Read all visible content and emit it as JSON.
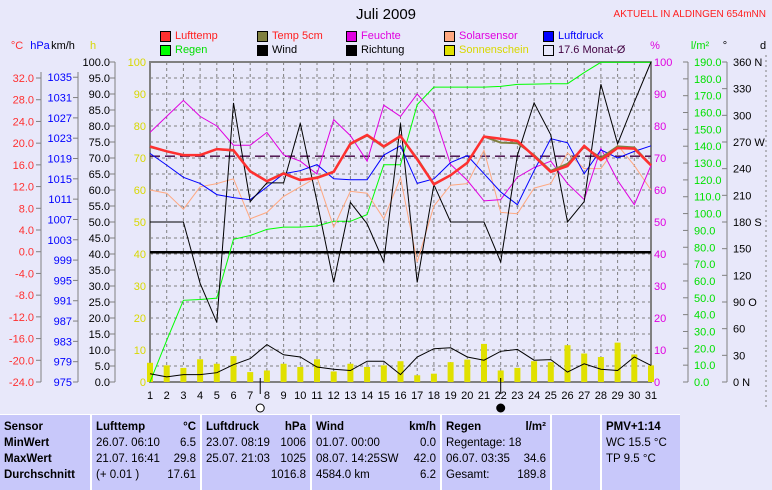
{
  "header": {
    "title": "Juli 2009",
    "status": "AKTUELL IN ALDINGEN 654mNN"
  },
  "legend": [
    {
      "label": "Lufttemp",
      "color": "#ff3030",
      "text_color": "#ff2020"
    },
    {
      "label": "Temp 5cm",
      "color": "#808040",
      "text_color": "#ff2020"
    },
    {
      "label": "Feuchte",
      "color": "#e000e0",
      "text_color": "#e000e0"
    },
    {
      "label": "Solarsensor",
      "color": "#ffa880",
      "text_color": "#e000e0"
    },
    {
      "label": "Luftdruck",
      "color": "#0000ff",
      "text_color": "#0000ff"
    },
    {
      "label": "Regen",
      "color": "#00ff00",
      "text_color": "#00e000"
    },
    {
      "label": "Wind",
      "color": "#000000",
      "text_color": "#000000"
    },
    {
      "label": "Richtung",
      "color": "#000000",
      "text_color": "#000000"
    },
    {
      "label": "Sonnenschein",
      "color": "#e0e000",
      "text_color": "#d8d800"
    },
    {
      "label": "17.6 Monat-Ø",
      "color": "#e8e8fa",
      "text_color": "#400040"
    }
  ],
  "chart_data": {
    "type": "line",
    "title": "Juli 2009",
    "x": [
      1,
      2,
      3,
      4,
      5,
      6,
      7,
      8,
      9,
      10,
      11,
      12,
      13,
      14,
      15,
      16,
      17,
      18,
      19,
      20,
      21,
      22,
      23,
      24,
      25,
      26,
      27,
      28,
      29,
      30,
      31
    ],
    "axes": {
      "celsius": {
        "unit": "°C",
        "ticks": [
          "32.0",
          "28.0",
          "24.0",
          "20.0",
          "16.0",
          "12.0",
          "8.0",
          "4.0",
          "0.0",
          "-4.0",
          "-8.0",
          "-12.0",
          "-16.0",
          "-20.0",
          "-24.0"
        ],
        "range": [
          -24,
          34.95
        ],
        "color": "#ff3030"
      },
      "hpa": {
        "unit": "hPa",
        "ticks": [
          "1035",
          "1031",
          "1027",
          "1023",
          "1019",
          "1015",
          "1011",
          "1007",
          "1003",
          "999",
          "995",
          "991",
          "987",
          "983",
          "979",
          "975"
        ],
        "range": [
          975,
          1038
        ],
        "color": "#0000ff"
      },
      "kmh": {
        "unit": "km/h",
        "ticks": [
          "100.0",
          "95.0",
          "90.0",
          "85.0",
          "80.0",
          "75.0",
          "70.0",
          "65.0",
          "60.0",
          "55.0",
          "50.0",
          "45.0",
          "40.0",
          "35.0",
          "30.0",
          "25.0",
          "20.0",
          "15.0",
          "10.0",
          "5.0",
          "0.0"
        ],
        "range": [
          0,
          100
        ],
        "color": "#000000"
      },
      "hours": {
        "unit": "h",
        "ticks": [
          "100",
          "90",
          "80",
          "70",
          "60",
          "50",
          "40",
          "30",
          "20",
          "10",
          "0"
        ],
        "range": [
          0,
          100
        ],
        "color": "#d8d800"
      },
      "percent": {
        "unit": "%",
        "ticks": [
          "100",
          "90",
          "80",
          "70",
          "60",
          "50",
          "40",
          "30",
          "20",
          "10",
          "0"
        ],
        "range": [
          0,
          100
        ],
        "color": "#e000e0"
      },
      "rain": {
        "unit": "l/m²",
        "ticks": [
          "190.0",
          "180.0",
          "170.0",
          "160.0",
          "150.0",
          "140.0",
          "130.0",
          "120.0",
          "110.0",
          "100.0",
          "90.0",
          "80.0",
          "70.0",
          "60.0",
          "50.0",
          "40.0",
          "30.0",
          "20.0",
          "10.0",
          "0.0"
        ],
        "range": [
          0,
          190
        ],
        "color": "#00e000"
      },
      "direction": {
        "unit": "°",
        "ticks": [
          "360 N",
          "330",
          "300",
          "270 W",
          "240",
          "210",
          "180 S",
          "150",
          "120",
          "90  O",
          "60",
          "30",
          "0    N"
        ],
        "range": [
          0,
          360
        ],
        "color": "#000000"
      },
      "right_unit": "d"
    },
    "series": [
      {
        "name": "Sonnenschein",
        "axis": "hours",
        "type": "bar",
        "color": "#e0e000",
        "values": [
          6,
          5.2,
          4.4,
          7.1,
          5.7,
          8.1,
          3.1,
          3.6,
          5.7,
          4.7,
          7.1,
          3.3,
          5.7,
          4.7,
          5.2,
          6.5,
          2.1,
          2.6,
          6.2,
          7,
          11.9,
          3.6,
          4.4,
          6.5,
          6.2,
          11.5,
          8.9,
          7.8,
          12.3,
          8.6,
          5.2
        ]
      },
      {
        "name": "Regen",
        "axis": "rain",
        "color": "#00ff00",
        "width": 1,
        "values": [
          0,
          24.7,
          48.5,
          49,
          49.8,
          84.7,
          87,
          90.6,
          92,
          92,
          92.6,
          95.4,
          95.4,
          99.4,
          129,
          129,
          164.7,
          175.1,
          175.1,
          175.1,
          175.1,
          175.5,
          176.7,
          176.9,
          177.1,
          177.1,
          183.7,
          189.8,
          189.8,
          189.8,
          189.8
        ]
      },
      {
        "name": "Solarsensor",
        "axis": "percent",
        "color": "#ffa880",
        "width": 1,
        "values": [
          60,
          59,
          54,
          61,
          62,
          63.5,
          51,
          53,
          58,
          61,
          64,
          48.4,
          59.6,
          59,
          51,
          63.8,
          37.5,
          55,
          61.5,
          62,
          72.4,
          53,
          52.6,
          60.6,
          62,
          71.6,
          66.7,
          66.7,
          74,
          67.7,
          60
        ]
      },
      {
        "name": "Feuchte",
        "axis": "percent",
        "color": "#e000e0",
        "width": 1,
        "values": [
          78,
          83,
          88,
          83,
          80,
          74,
          74,
          78,
          71,
          69,
          65,
          82,
          77,
          69,
          86.5,
          83,
          90,
          84,
          68,
          63,
          56.6,
          57,
          64,
          67,
          69,
          62,
          57,
          73,
          63,
          55.4,
          67.7
        ]
      },
      {
        "name": "Luftdruck",
        "axis": "hpa",
        "color": "#0000ff",
        "width": 1,
        "values": [
          1020,
          1017.7,
          1015.3,
          1014.1,
          1011.9,
          1011.3,
          1010.9,
          1013.4,
          1016,
          1016.6,
          1017.8,
          1015,
          1014.8,
          1014.8,
          1019.7,
          1021.5,
          1014.1,
          1015,
          1018.2,
          1019.6,
          1016,
          1012.4,
          1009.9,
          1016.6,
          1022.9,
          1022.1,
          1016,
          1020.7,
          1019.1,
          1020.4,
          1021.5
        ]
      },
      {
        "name": "Richtung",
        "axis": "direction",
        "color": "#000000",
        "width": 1,
        "values": [
          180,
          180,
          180,
          111,
          67,
          314,
          203,
          224,
          224,
          291,
          203,
          112,
          202,
          178,
          135,
          291,
          112,
          222,
          180,
          180,
          180,
          135,
          255,
          314,
          278,
          180,
          203,
          335,
          268,
          315,
          360
        ]
      },
      {
        "name": "Wind",
        "axis": "kmh",
        "color": "#000000",
        "width": 1,
        "values": [
          2.6,
          1.6,
          2.3,
          2.3,
          2.9,
          5.4,
          7.3,
          11.7,
          8.5,
          7.8,
          4.7,
          4,
          3.6,
          6.5,
          6.5,
          2.3,
          7.8,
          10.4,
          10.7,
          7.8,
          6.8,
          9.6,
          10.2,
          6.8,
          7,
          3.1,
          5.7,
          4,
          3.6,
          7.8,
          5.2
        ]
      },
      {
        "name": "Temp 5cm",
        "axis": "celsius",
        "color": "#808040",
        "width": 2,
        "values": [
          19.3,
          18.5,
          17.8,
          17.8,
          18.9,
          18.6,
          14.9,
          13.0,
          14.5,
          13.2,
          13.7,
          14.8,
          19.8,
          21.4,
          19.3,
          21.2,
          17.2,
          12.5,
          14.1,
          16.4,
          21.2,
          20.1,
          20.0,
          17.8,
          14.9,
          16.2,
          19.3,
          17.3,
          19.4,
          19.2,
          16.0
        ]
      },
      {
        "name": "Lufttemp",
        "axis": "celsius",
        "color": "#ff3030",
        "width": 2.5,
        "values": [
          19.4,
          18.5,
          17.8,
          17.8,
          18.9,
          18.7,
          14.8,
          13.0,
          14.4,
          13.2,
          13.6,
          14.7,
          19.9,
          21.5,
          19.4,
          21.3,
          17.0,
          12.4,
          14.1,
          16.4,
          21.2,
          20.8,
          20.4,
          17.6,
          14.7,
          15.8,
          19.5,
          16.9,
          19.1,
          19.0,
          15.9
        ]
      }
    ],
    "reference_lines": [
      {
        "name": "Monat-Ø",
        "axis": "celsius",
        "value": 17.6,
        "color": "#400040",
        "style": "dashed"
      },
      {
        "name": "wind-direction-mean",
        "axis": "direction",
        "value": 146,
        "color": "#000000",
        "style": "solid"
      }
    ],
    "moon_markers": [
      {
        "day": 7.6,
        "phase": "full"
      },
      {
        "day": 22,
        "phase": "new"
      }
    ],
    "grid": true
  },
  "table": {
    "sensor": {
      "header": "Sensor",
      "rows": [
        "MinWert",
        "MaxWert",
        "Durchschnitt"
      ]
    },
    "lufttemp": {
      "header": "Lufttemp",
      "unit": "°C",
      "rows": [
        [
          "26.07.  06:10",
          "6.5"
        ],
        [
          "21.07.  16:41",
          "29.8"
        ],
        [
          "(+ 0.01 )",
          "17.61"
        ]
      ]
    },
    "luftdruck": {
      "header": "Luftdruck",
      "unit": "hPa",
      "rows": [
        [
          "23.07.  08:19",
          "1006"
        ],
        [
          "25.07.  21:03",
          "1025"
        ],
        [
          "",
          "1016.8"
        ]
      ]
    },
    "wind": {
      "header": "Wind",
      "unit": "km/h",
      "rows": [
        [
          "01.07.  00:00",
          "0.0"
        ],
        [
          "08.07.  14:25SW",
          "42.0"
        ],
        [
          "4584.0 km",
          "6.2"
        ]
      ]
    },
    "regen": {
      "header": "Regen",
      "unit": "l/m²",
      "rows": [
        [
          "Regentage: 18",
          ""
        ],
        [
          "06.07.  03:35",
          "34.6"
        ],
        [
          "Gesamt:",
          "189.8"
        ]
      ]
    },
    "pmv": {
      "header": "PMV+1:14",
      "rows": [
        "WC 15.5 °C",
        "TP 9.5 °C"
      ]
    }
  }
}
